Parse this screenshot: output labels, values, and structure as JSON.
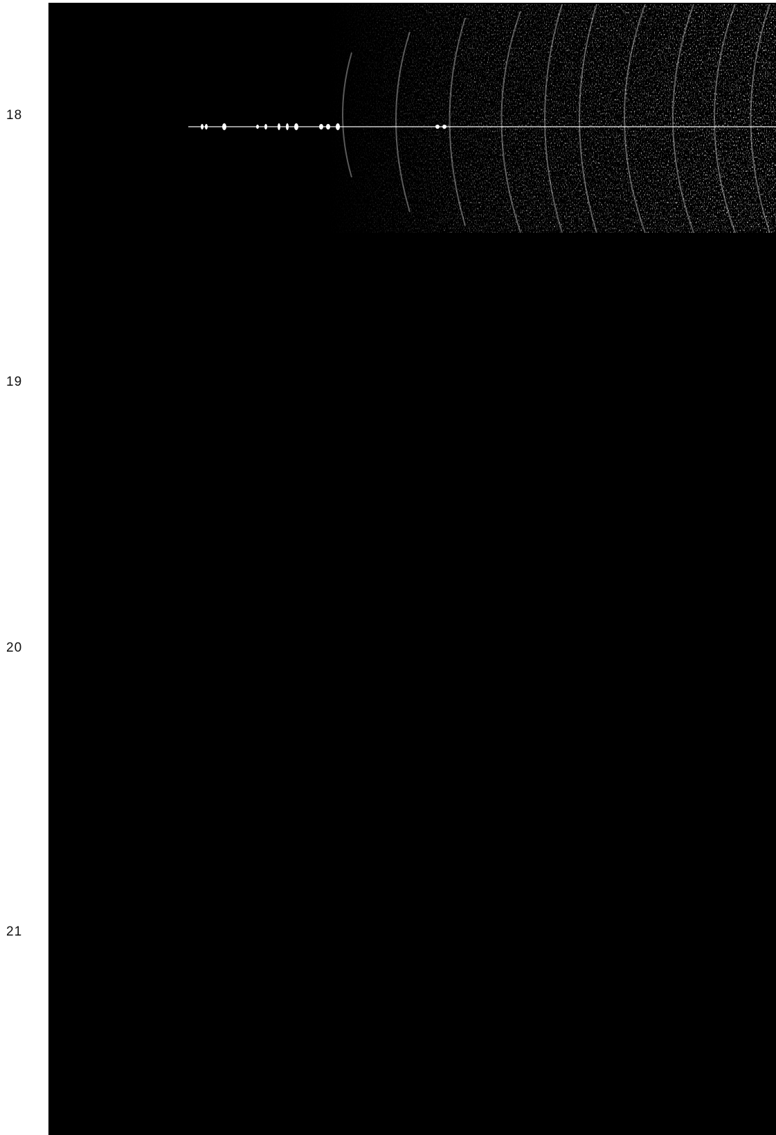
{
  "figure": {
    "panel_labels": [
      "18",
      "19",
      "20",
      "21"
    ]
  },
  "colors": {
    "plate_background": "#000000",
    "streak_color": "#ffffff",
    "label_color": "#111111"
  }
}
